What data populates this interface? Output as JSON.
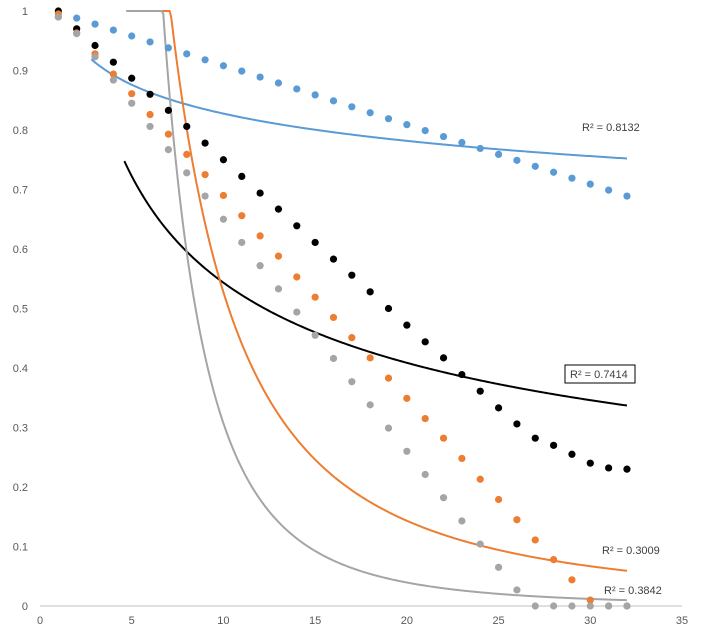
{
  "chart_data": {
    "type": "scatter",
    "xlim": [
      0,
      35
    ],
    "ylim": [
      0,
      1
    ],
    "x_ticks": [
      "0",
      "5",
      "10",
      "15",
      "20",
      "25",
      "30",
      "35"
    ],
    "y_ticks": [
      "0",
      "0.1",
      "0.2",
      "0.3",
      "0.4",
      "0.5",
      "0.6",
      "0.7",
      "0.8",
      "0.9",
      "1"
    ],
    "grid": false,
    "legend": "none",
    "series": [
      {
        "color": "#5b9bd5",
        "x": [
          1,
          2,
          3,
          4,
          5,
          6,
          7,
          8,
          9,
          10,
          11,
          12,
          13,
          14,
          15,
          16,
          17,
          18,
          19,
          20,
          21,
          22,
          23,
          24,
          25,
          26,
          27,
          28,
          29,
          30,
          31,
          32
        ],
        "y": [
          0.99,
          0.988,
          0.978,
          0.968,
          0.958,
          0.948,
          0.938,
          0.928,
          0.918,
          0.908,
          0.899,
          0.889,
          0.879,
          0.869,
          0.859,
          0.849,
          0.839,
          0.829,
          0.819,
          0.809,
          0.799,
          0.789,
          0.779,
          0.769,
          0.759,
          0.749,
          0.739,
          0.729,
          0.719,
          0.709,
          0.699,
          0.689
        ],
        "trendline": {
          "type": "power",
          "a": 1.0,
          "b": -0.0822,
          "x_from": 2.8,
          "x_to": 32
        },
        "r2_label": "R² = 0.8132"
      },
      {
        "color": "#000000",
        "x": [
          1,
          2,
          3,
          4,
          5,
          6,
          7,
          8,
          9,
          10,
          11,
          12,
          13,
          14,
          15,
          16,
          17,
          18,
          19,
          20,
          21,
          22,
          23,
          24,
          25,
          26,
          27,
          28,
          29,
          30,
          31,
          32
        ],
        "y": [
          1.0,
          0.97,
          0.942,
          0.914,
          0.887,
          0.86,
          0.833,
          0.806,
          0.778,
          0.75,
          0.722,
          0.694,
          0.667,
          0.639,
          0.611,
          0.583,
          0.556,
          0.528,
          0.5,
          0.472,
          0.444,
          0.417,
          0.389,
          0.361,
          0.333,
          0.306,
          0.282,
          0.27,
          0.255,
          0.24,
          0.232,
          0.23
        ],
        "trendline": {
          "type": "power",
          "a": 1.4,
          "b": -0.411,
          "x_from": 4.6,
          "x_to": 32
        },
        "r2_label": "R² = 0.7414"
      },
      {
        "color": "#ed7d31",
        "x": [
          1,
          2,
          3,
          4,
          5,
          6,
          7,
          8,
          9,
          10,
          11,
          12,
          13,
          14,
          15,
          16,
          17,
          18,
          19,
          20,
          21,
          22,
          23,
          24,
          25,
          26,
          27,
          28,
          29,
          30,
          31,
          32
        ],
        "y": [
          0.995,
          0.963,
          0.928,
          0.894,
          0.861,
          0.826,
          0.793,
          0.759,
          0.725,
          0.69,
          0.656,
          0.622,
          0.588,
          0.553,
          0.519,
          0.485,
          0.451,
          0.417,
          0.383,
          0.349,
          0.315,
          0.282,
          0.248,
          0.213,
          0.179,
          0.145,
          0.111,
          0.078,
          0.044,
          0.01,
          0.0,
          0.0
        ],
        "trendline": {
          "type": "power",
          "a": 40.0,
          "b": -1.88,
          "x_from": 4.7,
          "x_to": 32
        },
        "r2_label": "R² = 0.3009"
      },
      {
        "color": "#a5a5a5",
        "x": [
          1,
          2,
          3,
          4,
          5,
          6,
          7,
          8,
          9,
          10,
          11,
          12,
          13,
          14,
          15,
          16,
          17,
          18,
          19,
          20,
          21,
          22,
          23,
          24,
          25,
          26,
          27,
          28,
          29,
          30,
          31,
          32
        ],
        "y": [
          0.99,
          0.962,
          0.923,
          0.884,
          0.845,
          0.806,
          0.767,
          0.728,
          0.689,
          0.65,
          0.611,
          0.572,
          0.533,
          0.494,
          0.455,
          0.416,
          0.377,
          0.338,
          0.299,
          0.26,
          0.221,
          0.182,
          0.143,
          0.104,
          0.065,
          0.027,
          0.0,
          0.0,
          0.0,
          0.0,
          0.0,
          0.0
        ],
        "trendline": {
          "type": "power",
          "a": 280.0,
          "b": -2.96,
          "x_from": 4.72,
          "x_to": 32
        },
        "r2_label": "R² = 0.3842"
      }
    ]
  }
}
